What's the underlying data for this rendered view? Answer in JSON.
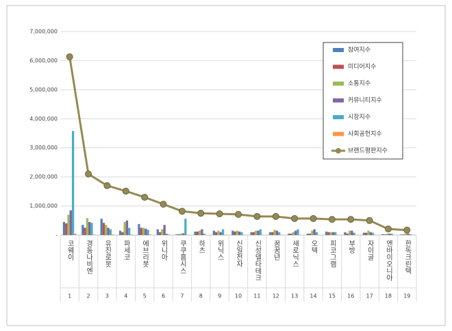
{
  "chart_data": {
    "type": "bar",
    "categories": [
      "코웨이",
      "경동나비엔",
      "유진로봇",
      "파세코",
      "에브리봇",
      "위니아",
      "쿠쿠홈시스",
      "하츠",
      "위닉스",
      "신일전자",
      "신성델타테크",
      "꿈꿈년",
      "새로닉스",
      "오텍",
      "피코그램",
      "부방",
      "자이글",
      "엔바이오니아",
      "한독크린텍"
    ],
    "category_ranks": [
      1,
      2,
      3,
      4,
      5,
      6,
      7,
      8,
      9,
      10,
      11,
      12,
      13,
      14,
      15,
      16,
      17,
      18,
      19
    ],
    "series": [
      {
        "name": "참여지수",
        "color": "#4f81bd",
        "values": [
          450000,
          350000,
          560000,
          150000,
          380000,
          200000,
          20000,
          120000,
          150000,
          150000,
          100000,
          100000,
          50000,
          50000,
          120000,
          100000,
          80000,
          30000,
          20000
        ]
      },
      {
        "name": "미디어지수",
        "color": "#c0504d",
        "values": [
          400000,
          250000,
          420000,
          100000,
          250000,
          100000,
          30000,
          120000,
          100000,
          120000,
          100000,
          100000,
          50000,
          50000,
          100000,
          50000,
          80000,
          20000,
          20000
        ]
      },
      {
        "name": "소통지수",
        "color": "#9bbb59",
        "values": [
          700000,
          580000,
          350000,
          450000,
          250000,
          200000,
          50000,
          150000,
          150000,
          150000,
          150000,
          180000,
          100000,
          150000,
          100000,
          150000,
          150000,
          50000,
          50000
        ]
      },
      {
        "name": "커뮤니티지수",
        "color": "#8064a2",
        "values": [
          850000,
          450000,
          250000,
          500000,
          220000,
          350000,
          60000,
          200000,
          100000,
          120000,
          150000,
          150000,
          150000,
          200000,
          100000,
          150000,
          100000,
          50000,
          50000
        ]
      },
      {
        "name": "시장지수",
        "color": "#4bacc6",
        "values": [
          3580000,
          420000,
          200000,
          250000,
          180000,
          50000,
          560000,
          50000,
          200000,
          100000,
          200000,
          100000,
          200000,
          100000,
          100000,
          80000,
          80000,
          50000,
          30000
        ]
      },
      {
        "name": "사회공헌지수",
        "color": "#f79646",
        "values": [
          50000,
          20000,
          20000,
          20000,
          20000,
          20000,
          10000,
          10000,
          10000,
          10000,
          10000,
          10000,
          10000,
          10000,
          10000,
          10000,
          10000,
          10000,
          10000
        ]
      },
      {
        "name": "브랜드평판지수",
        "type": "line",
        "color": "#948a54",
        "values": [
          6130000,
          2100000,
          1700000,
          1510000,
          1300000,
          1060000,
          820000,
          750000,
          730000,
          710000,
          640000,
          640000,
          570000,
          570000,
          540000,
          540000,
          500000,
          210000,
          170000
        ]
      }
    ],
    "ylim": [
      0,
      7000000
    ],
    "yticks": [
      {
        "value": 0,
        "label": "-"
      },
      {
        "value": 1000000,
        "label": "1,000,000"
      },
      {
        "value": 2000000,
        "label": "2,000,000"
      },
      {
        "value": 3000000,
        "label": "3,000,000"
      },
      {
        "value": 4000000,
        "label": "4,000,000"
      },
      {
        "value": 5000000,
        "label": "5,000,000"
      },
      {
        "value": 6000000,
        "label": "6,000,000"
      },
      {
        "value": 7000000,
        "label": "7,000,000"
      }
    ],
    "grid": true,
    "legend": "top-right"
  }
}
